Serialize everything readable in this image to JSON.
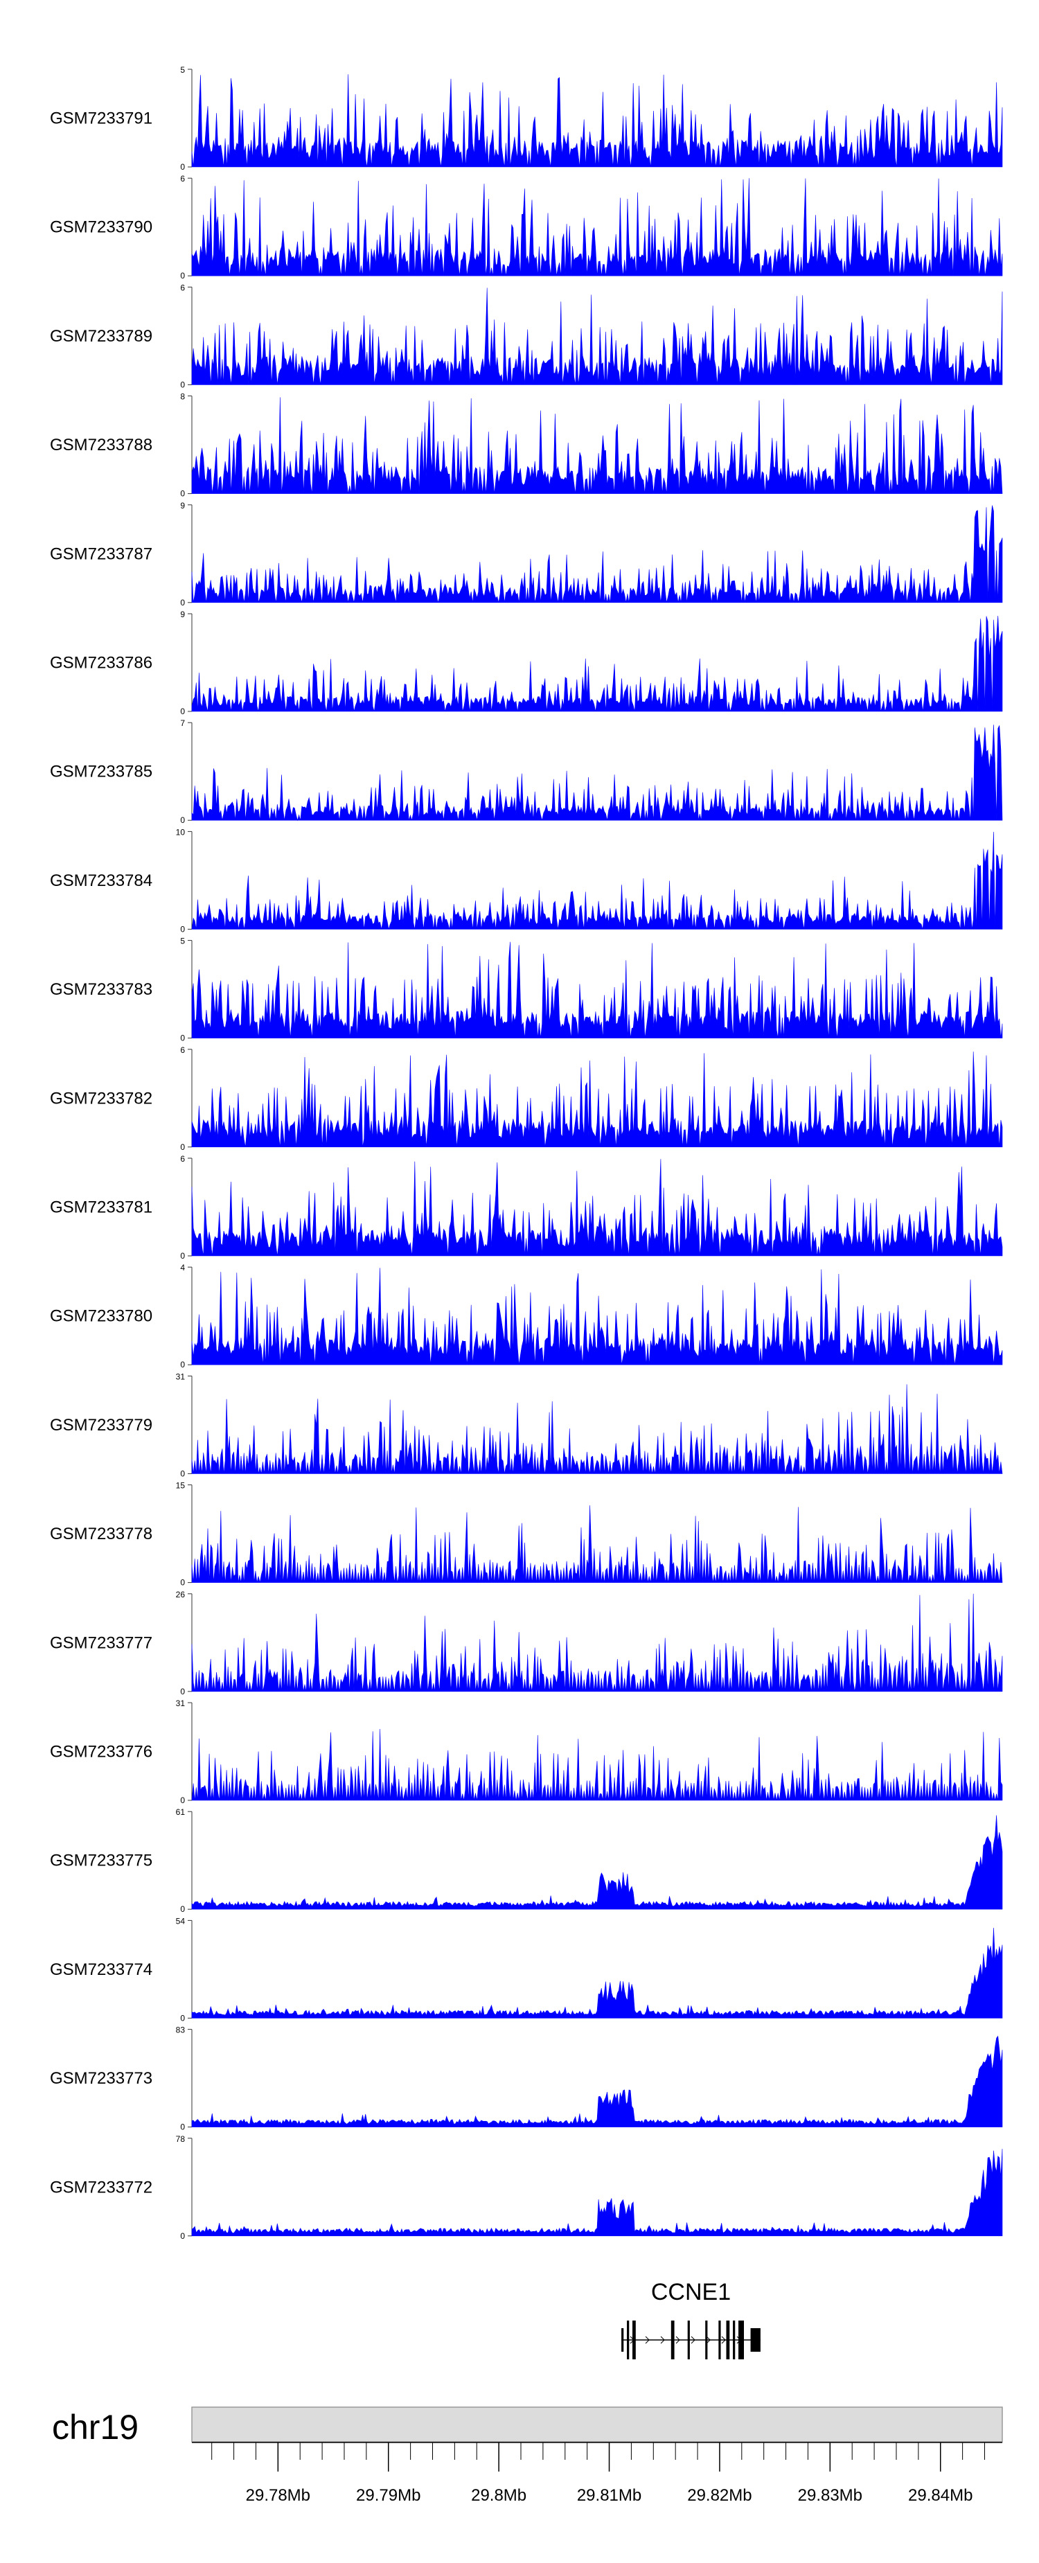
{
  "chart_data": {
    "type": "area",
    "title": "",
    "chromosome": "chr19",
    "x_range_mb": [
      29.7722,
      29.8456
    ],
    "x_ticks": [
      {
        "value": 29.78,
        "label": "29.78Mb"
      },
      {
        "value": 29.79,
        "label": "29.79Mb"
      },
      {
        "value": 29.8,
        "label": "29.8Mb"
      },
      {
        "value": 29.81,
        "label": "29.81Mb"
      },
      {
        "value": 29.82,
        "label": "29.82Mb"
      },
      {
        "value": 29.83,
        "label": "29.83Mb"
      },
      {
        "value": 29.84,
        "label": "29.84Mb"
      }
    ],
    "minor_tick_step_mb": 0.002,
    "series_color": "#0000ff",
    "tracks": [
      {
        "name": "GSM7233791",
        "ymin": 0,
        "ymax": 5,
        "profile": "uniform",
        "density": 0.9
      },
      {
        "name": "GSM7233790",
        "ymin": 0,
        "ymax": 6,
        "profile": "uniform",
        "density": 0.85
      },
      {
        "name": "GSM7233789",
        "ymin": 0,
        "ymax": 6,
        "profile": "uniform",
        "density": 0.9
      },
      {
        "name": "GSM7233788",
        "ymin": 0,
        "ymax": 8,
        "profile": "uniform",
        "density": 0.9
      },
      {
        "name": "GSM7233787",
        "ymin": 0,
        "ymax": 9,
        "profile": "right-peak",
        "density": 0.85
      },
      {
        "name": "GSM7233786",
        "ymin": 0,
        "ymax": 9,
        "profile": "right-peak",
        "density": 0.9
      },
      {
        "name": "GSM7233785",
        "ymin": 0,
        "ymax": 7,
        "profile": "right-peak",
        "density": 0.9
      },
      {
        "name": "GSM7233784",
        "ymin": 0,
        "ymax": 10,
        "profile": "right-peak",
        "density": 0.9
      },
      {
        "name": "GSM7233783",
        "ymin": 0,
        "ymax": 5,
        "profile": "uniform",
        "density": 0.95
      },
      {
        "name": "GSM7233782",
        "ymin": 0,
        "ymax": 6,
        "profile": "uniform",
        "density": 0.95
      },
      {
        "name": "GSM7233781",
        "ymin": 0,
        "ymax": 6,
        "profile": "uniform",
        "density": 0.95
      },
      {
        "name": "GSM7233780",
        "ymin": 0,
        "ymax": 4,
        "profile": "uniform",
        "density": 0.95
      },
      {
        "name": "GSM7233779",
        "ymin": 0,
        "ymax": 31,
        "profile": "sparse-right",
        "density": 0.55
      },
      {
        "name": "GSM7233778",
        "ymin": 0,
        "ymax": 15,
        "profile": "sparse",
        "density": 0.4
      },
      {
        "name": "GSM7233777",
        "ymin": 0,
        "ymax": 26,
        "profile": "sparse-right",
        "density": 0.55
      },
      {
        "name": "GSM7233776",
        "ymin": 0,
        "ymax": 31,
        "profile": "sparse",
        "density": 0.35
      },
      {
        "name": "GSM7233775",
        "ymin": 0,
        "ymax": 61,
        "profile": "gene-peak",
        "density": 0.9
      },
      {
        "name": "GSM7233774",
        "ymin": 0,
        "ymax": 54,
        "profile": "gene-peak",
        "density": 0.75
      },
      {
        "name": "GSM7233773",
        "ymin": 0,
        "ymax": 83,
        "profile": "gene-peak",
        "density": 0.85
      },
      {
        "name": "GSM7233772",
        "ymin": 0,
        "ymax": 78,
        "profile": "gene-peak",
        "density": 0.85
      }
    ],
    "gene": {
      "name": "CCNE1",
      "strand": "+",
      "start_mb": 29.8111,
      "end_mb": 29.8237,
      "exons_mb": [
        [
          29.8111,
          29.8113
        ],
        [
          29.8116,
          29.8118
        ],
        [
          29.8121,
          29.8124
        ],
        [
          29.8156,
          29.8159
        ],
        [
          29.8171,
          29.8173
        ],
        [
          29.8187,
          29.8189
        ],
        [
          29.8199,
          29.8201
        ],
        [
          29.8206,
          29.8209
        ],
        [
          29.8212,
          29.8214
        ],
        [
          29.8217,
          29.8222
        ],
        [
          29.8228,
          29.8237
        ]
      ]
    }
  }
}
